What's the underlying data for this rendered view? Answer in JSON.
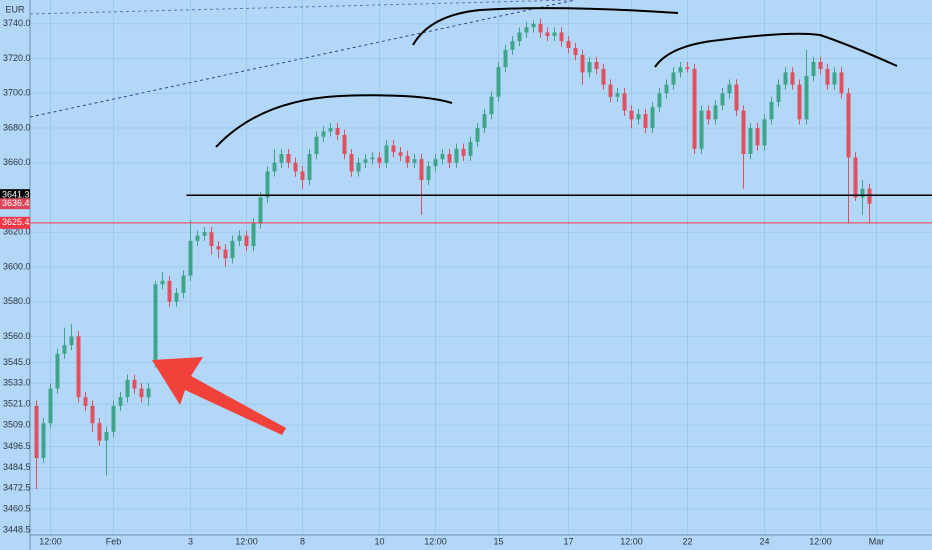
{
  "chart_data": {
    "type": "candlestick",
    "currency": "EUR",
    "background": "#b3d8f7",
    "grid": true,
    "up_color": "#3fa58a",
    "down_color": "#e0505f",
    "categories": [
      null,
      null,
      "12:00",
      null,
      null,
      null,
      null,
      null,
      null,
      null,
      null,
      "Feb",
      null,
      null,
      null,
      null,
      null,
      null,
      null,
      null,
      null,
      null,
      "3",
      null,
      null,
      null,
      null,
      null,
      null,
      null,
      "12:00",
      null,
      null,
      null,
      null,
      null,
      null,
      null,
      "8",
      null,
      null,
      null,
      null,
      null,
      null,
      null,
      null,
      null,
      null,
      "10",
      null,
      null,
      null,
      null,
      null,
      null,
      null,
      "12:00",
      null,
      null,
      null,
      null,
      null,
      null,
      null,
      null,
      "15",
      null,
      null,
      null,
      null,
      null,
      null,
      null,
      null,
      null,
      "17",
      null,
      null,
      null,
      null,
      null,
      null,
      null,
      null,
      "12:00",
      null,
      null,
      null,
      null,
      null,
      null,
      null,
      "22",
      null,
      null,
      null,
      null,
      null,
      null,
      null,
      null,
      null,
      null,
      "24",
      null,
      null,
      null,
      null,
      null,
      null,
      null,
      "12:00",
      null,
      null,
      null,
      null,
      null,
      null,
      null,
      "Mar"
    ],
    "open": [
      3520,
      3490,
      3510,
      3530,
      3550,
      3555,
      3560,
      3525,
      3520,
      3510,
      3500,
      3505,
      3520,
      3525,
      3535,
      3530,
      3525,
      3545,
      3590,
      3592,
      3580,
      3585,
      3595,
      3615,
      3618,
      3620,
      3612,
      3610,
      3605,
      3615,
      3618,
      3612,
      3625,
      3640,
      3655,
      3660,
      3665,
      3660,
      3655,
      3650,
      3665,
      3675,
      3678,
      3680,
      3676,
      3665,
      3655,
      3660,
      3662,
      3663,
      3660,
      3670,
      3666,
      3664,
      3660,
      3662,
      3650,
      3658,
      3662,
      3665,
      3660,
      3668,
      3664,
      3672,
      3680,
      3688,
      3698,
      3715,
      3725,
      3730,
      3735,
      3738,
      3740,
      3735,
      3733,
      3735,
      3730,
      3726,
      3722,
      3712,
      3718,
      3714,
      3705,
      3698,
      3700,
      3690,
      3685,
      3688,
      3680,
      3692,
      3700,
      3705,
      3712,
      3715,
      3714,
      3668,
      3690,
      3685,
      3693,
      3700,
      3705,
      3690,
      3665,
      3680,
      3670,
      3685,
      3695,
      3705,
      3712,
      3705,
      3685,
      3710,
      3718,
      3714,
      3705,
      3712,
      3700,
      3663,
      3640,
      3645,
      null
    ],
    "high": [
      3523,
      3513,
      3533,
      3553,
      3565,
      3567,
      3563,
      3528,
      3523,
      3513,
      3508,
      3523,
      3528,
      3538,
      3538,
      3533,
      3533,
      3592,
      3597,
      3595,
      3588,
      3598,
      3627,
      3621,
      3623,
      3623,
      3615,
      3613,
      3618,
      3621,
      3621,
      3628,
      3643,
      3658,
      3668,
      3668,
      3668,
      3663,
      3658,
      3668,
      3678,
      3681,
      3683,
      3683,
      3679,
      3668,
      3663,
      3665,
      3666,
      3666,
      3673,
      3673,
      3669,
      3667,
      3665,
      3665,
      3661,
      3665,
      3668,
      3668,
      3671,
      3671,
      3675,
      3683,
      3691,
      3701,
      3718,
      3728,
      3733,
      3738,
      3741,
      3742,
      3743,
      3738,
      3738,
      3738,
      3733,
      3729,
      3725,
      3721,
      3721,
      3717,
      3708,
      3703,
      3703,
      3693,
      3691,
      3691,
      3695,
      3703,
      3708,
      3715,
      3718,
      3718,
      3717,
      3693,
      3693,
      3696,
      3703,
      3708,
      3708,
      3693,
      3683,
      3683,
      3688,
      3698,
      3708,
      3715,
      3715,
      3708,
      3725,
      3721,
      3721,
      3717,
      3715,
      3715,
      3703,
      3666,
      3650,
      3648,
      null
    ],
    "low": [
      3472,
      3487,
      3507,
      3527,
      3547,
      3552,
      3522,
      3517,
      3505,
      3497,
      3480,
      3502,
      3517,
      3522,
      3527,
      3522,
      3520,
      3542,
      3587,
      3577,
      3577,
      3582,
      3592,
      3612,
      3615,
      3607,
      3605,
      3600,
      3602,
      3612,
      3609,
      3609,
      3622,
      3637,
      3652,
      3657,
      3657,
      3652,
      3645,
      3647,
      3662,
      3672,
      3675,
      3673,
      3662,
      3652,
      3652,
      3657,
      3659,
      3657,
      3657,
      3663,
      3661,
      3657,
      3657,
      3630,
      3647,
      3655,
      3659,
      3657,
      3657,
      3661,
      3661,
      3669,
      3677,
      3685,
      3695,
      3712,
      3722,
      3727,
      3732,
      3735,
      3732,
      3730,
      3730,
      3727,
      3723,
      3719,
      3705,
      3709,
      3711,
      3702,
      3695,
      3695,
      3687,
      3680,
      3682,
      3677,
      3677,
      3689,
      3697,
      3702,
      3709,
      3712,
      3665,
      3665,
      3682,
      3682,
      3690,
      3697,
      3687,
      3645,
      3662,
      3667,
      3667,
      3682,
      3692,
      3702,
      3702,
      3682,
      3682,
      3707,
      3711,
      3702,
      3702,
      3697,
      3625,
      3638,
      3630,
      3625,
      null
    ],
    "close": [
      3490,
      3510,
      3530,
      3550,
      3555,
      3560,
      3525,
      3520,
      3510,
      3500,
      3505,
      3520,
      3525,
      3535,
      3530,
      3525,
      3530,
      3590,
      3592,
      3580,
      3585,
      3595,
      3615,
      3618,
      3620,
      3612,
      3610,
      3605,
      3615,
      3618,
      3612,
      3625,
      3640,
      3655,
      3660,
      3665,
      3660,
      3655,
      3650,
      3665,
      3675,
      3678,
      3680,
      3676,
      3665,
      3655,
      3660,
      3662,
      3663,
      3660,
      3670,
      3666,
      3664,
      3660,
      3662,
      3650,
      3658,
      3662,
      3665,
      3660,
      3668,
      3664,
      3672,
      3680,
      3688,
      3698,
      3715,
      3725,
      3730,
      3735,
      3738,
      3740,
      3735,
      3733,
      3735,
      3730,
      3726,
      3722,
      3712,
      3718,
      3714,
      3705,
      3698,
      3700,
      3690,
      3685,
      3688,
      3680,
      3692,
      3700,
      3705,
      3712,
      3715,
      3714,
      3668,
      3690,
      3685,
      3693,
      3700,
      3705,
      3690,
      3665,
      3680,
      3670,
      3685,
      3695,
      3705,
      3712,
      3705,
      3685,
      3710,
      3718,
      3714,
      3705,
      3712,
      3700,
      3663,
      3640,
      3645,
      3636.4,
      null
    ],
    "ylim": [
      3437,
      3753.7
    ],
    "yticks": [
      3448.5,
      3460.5,
      3472.5,
      3484.5,
      3496.5,
      {
        "value": 3509,
        "label": "3509.0"
      },
      {
        "value": 3521,
        "label": "3521.0"
      },
      {
        "value": 3533,
        "label": "3533.0"
      },
      {
        "value": 3545,
        "label": "3545.0"
      },
      {
        "value": 3560,
        "label": "3560.0"
      },
      {
        "value": 3580,
        "label": "3580.0"
      },
      {
        "value": 3600,
        "label": "3600.0"
      },
      {
        "value": 3620,
        "label": "3620.0"
      },
      {
        "value": 3660,
        "label": "3660.0"
      },
      {
        "value": 3680,
        "label": "3680.0"
      },
      {
        "value": 3700,
        "label": "3700.0"
      },
      {
        "value": 3720,
        "label": "3720.0"
      },
      {
        "value": 3740,
        "label": "3740.0"
      }
    ],
    "price_lines": [
      {
        "value": 3641.3,
        "color": "#000000"
      },
      {
        "value": 3625.4,
        "color": "#f23645"
      }
    ],
    "last_price_color": "#d8485a"
  }
}
